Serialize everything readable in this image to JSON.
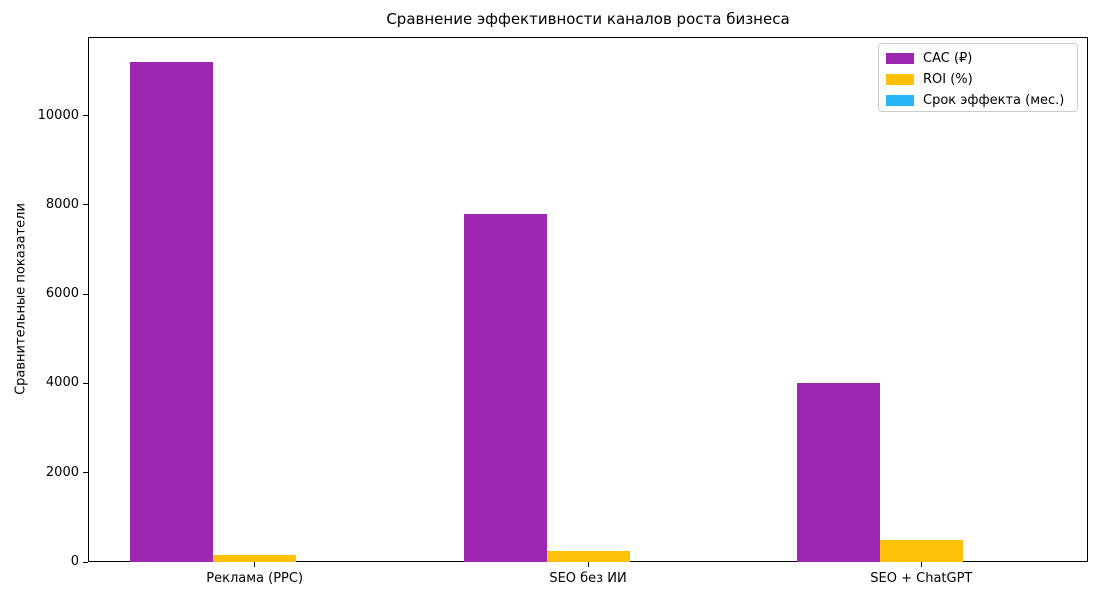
{
  "chart_data": {
    "type": "bar",
    "title": "Сравнение эффективности каналов роста бизнеса",
    "xlabel": "",
    "ylabel": "Сравнительные показатели",
    "categories": [
      "Реклама (PPC)",
      "SEO без ИИ",
      "SEO + ChatGPT"
    ],
    "series": [
      {
        "name": "CAC (₽)",
        "color": "#9c27b0",
        "values": [
          11200,
          7800,
          4000
        ]
      },
      {
        "name": "ROI (%)",
        "color": "#ffc107",
        "values": [
          150,
          250,
          500
        ]
      },
      {
        "name": "Срок эффекта (мес.)",
        "color": "#29b6f6",
        "values": [
          0,
          0,
          0
        ],
        "note": "bars not visible at this axis scale"
      }
    ],
    "ylim": [
      0,
      11760
    ],
    "yticks": [
      0,
      2000,
      4000,
      6000,
      8000,
      10000
    ],
    "grid": false,
    "legend_position": "upper right",
    "background": "#ffffff",
    "axis_color": "#000000"
  }
}
